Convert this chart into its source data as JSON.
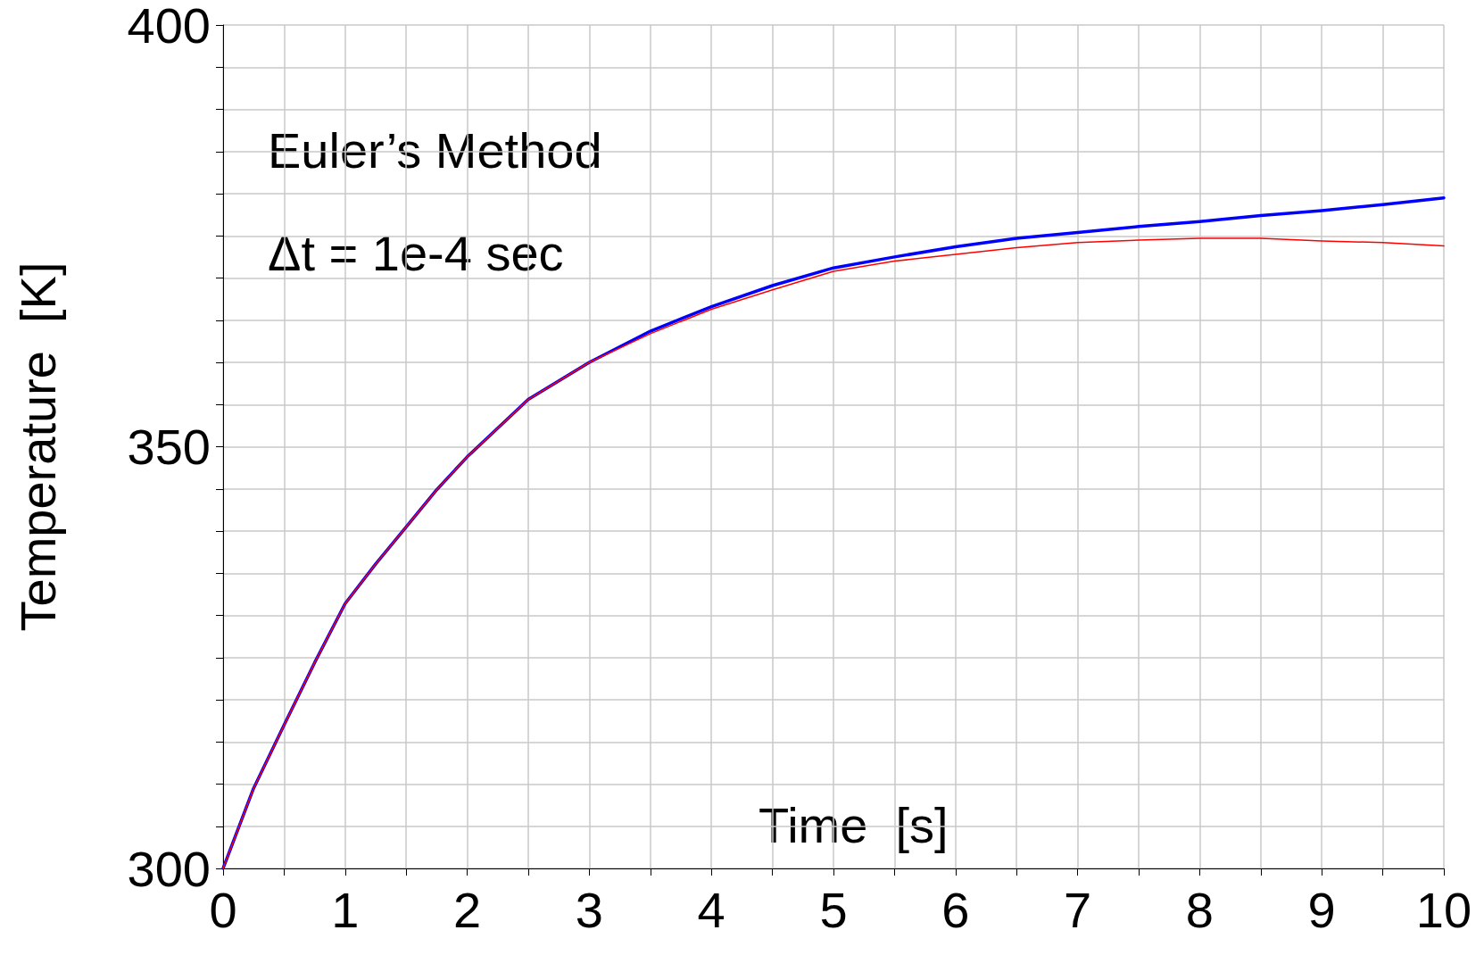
{
  "chart_data": {
    "type": "line",
    "xlabel": "Time  [s]",
    "ylabel": "Temperature  [K]",
    "annotations": [
      "Euler’s Method",
      "Δt = 1e-4 sec"
    ],
    "xlim": [
      0,
      10
    ],
    "xticks": [
      0,
      {
        "value": 0.5,
        "label": null
      },
      1,
      {
        "value": 1.5,
        "label": null
      },
      2,
      {
        "value": 2.5,
        "label": null
      },
      3,
      {
        "value": 3.5,
        "label": null
      },
      4,
      {
        "value": 4.5,
        "label": null
      },
      5,
      {
        "value": 5.5,
        "label": null
      },
      6,
      {
        "value": 6.5,
        "label": null
      },
      7,
      {
        "value": 7.5,
        "label": null
      },
      8,
      {
        "value": 8.5,
        "label": null
      },
      9,
      {
        "value": 9.5,
        "label": null
      },
      10
    ],
    "ylim": [
      300,
      400
    ],
    "yticks": [
      300,
      {
        "value": 305,
        "label": null
      },
      {
        "value": 310,
        "label": null
      },
      {
        "value": 315,
        "label": null
      },
      {
        "value": 320,
        "label": null
      },
      {
        "value": 325,
        "label": null
      },
      {
        "value": 330,
        "label": null
      },
      {
        "value": 335,
        "label": null
      },
      {
        "value": 340,
        "label": null
      },
      {
        "value": 345,
        "label": null
      },
      350,
      {
        "value": 355,
        "label": null
      },
      {
        "value": 360,
        "label": null
      },
      {
        "value": 365,
        "label": null
      },
      {
        "value": 370,
        "label": null
      },
      {
        "value": 375,
        "label": null
      },
      {
        "value": 380,
        "label": null
      },
      {
        "value": 385,
        "label": null
      },
      {
        "value": 390,
        "label": null
      },
      {
        "value": 395,
        "label": null
      },
      400
    ],
    "grid": true,
    "marker": "none",
    "line_style": "solid",
    "x": [
      0,
      0.25,
      0.5,
      0.75,
      1,
      1.25,
      1.5,
      1.75,
      2,
      2.5,
      3,
      3.5,
      4,
      4.5,
      5,
      5.5,
      6,
      6.5,
      7,
      7.5,
      8,
      8.5,
      9,
      9.5,
      10
    ],
    "series": [
      {
        "color": "#0000ff",
        "values": [
          300,
          309.5,
          317.0,
          324.4,
          331.4,
          336.1,
          340.5,
          344.9,
          348.8,
          355.6,
          360.0,
          363.7,
          366.6,
          369.1,
          371.2,
          372.5,
          373.7,
          374.7,
          375.4,
          376.1,
          376.7,
          377.4,
          378.0,
          378.7,
          379.5
        ]
      },
      {
        "color": "#ff0000",
        "values": [
          300,
          309.5,
          317.0,
          324.4,
          331.4,
          336.1,
          340.5,
          344.9,
          348.8,
          355.6,
          360.0,
          363.4,
          366.3,
          368.6,
          370.8,
          372.0,
          372.8,
          373.6,
          374.2,
          374.5,
          374.7,
          374.7,
          374.4,
          374.2,
          373.8
        ]
      }
    ]
  }
}
